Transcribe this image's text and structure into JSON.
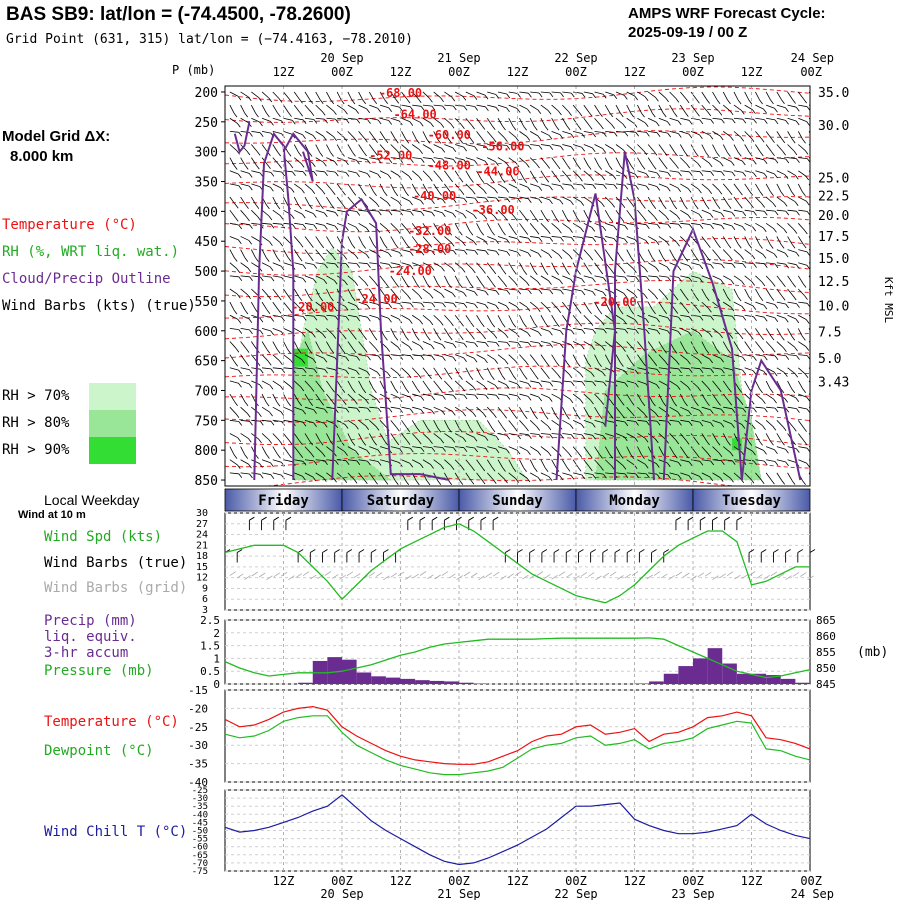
{
  "header": {
    "title": "BAS SB9:  lat/lon = (-74.4500, -78.2600)",
    "subtitle": "Grid Point (631, 315) lat/lon = (−74.4163, −78.2010)",
    "cycle_line1": "AMPS WRF Forecast Cycle:",
    "cycle_line2": "2025-09-19 / 00  Z"
  },
  "model_grid": {
    "label": "Model Grid ΔX:",
    "value": "8.000 km"
  },
  "legend": {
    "temperature": "Temperature (°C)",
    "rh": "RH (%, WRT liq. wat.)",
    "cloud": "Cloud/Precip Outline",
    "wind_barbs": "Wind Barbs (kts) (true)",
    "rh_classes": [
      {
        "label": "RH > 70%",
        "color": "#ccf5cc"
      },
      {
        "label": "RH > 80%",
        "color": "#99e699"
      },
      {
        "label": "RH > 90%",
        "color": "#33dd33"
      }
    ]
  },
  "colors": {
    "temperature": "#ee1111",
    "rh_line": "#22bb22",
    "cloud": "#6a2c91",
    "wind_chill": "#1c1ca0",
    "precip_bar": "#6a2c91",
    "dow_dark": "#4a5aa8",
    "grid_barb": "#aaaaaa"
  },
  "time_axis": {
    "hour_labels": [
      "12Z",
      "00Z",
      "12Z",
      "00Z",
      "12Z",
      "00Z",
      "12Z",
      "00Z",
      "12Z",
      "00Z"
    ],
    "hour_positions": [
      12,
      24,
      36,
      48,
      60,
      72,
      84,
      96,
      108,
      120
    ],
    "date_labels": [
      "20 Sep",
      "21 Sep",
      "22 Sep",
      "23 Sep",
      "24 Sep"
    ],
    "date_positions": [
      24,
      48,
      72,
      96,
      120
    ],
    "start_hour": 0,
    "end_hour": 120
  },
  "weekday": {
    "title": "Local Weekday",
    "days": [
      {
        "label": "Friday",
        "start": 0,
        "end": 24
      },
      {
        "label": "Saturday",
        "start": 24,
        "end": 48
      },
      {
        "label": "Sunday",
        "start": 48,
        "end": 72
      },
      {
        "label": "Monday",
        "start": 72,
        "end": 96
      },
      {
        "label": "Tuesday",
        "start": 96,
        "end": 120
      }
    ]
  },
  "chart_data": [
    {
      "type": "heatmap",
      "name": "time-height cross section",
      "y_axis_left": {
        "label": "P (mb)",
        "ticks": [
          200,
          250,
          300,
          350,
          400,
          450,
          500,
          550,
          600,
          650,
          700,
          750,
          800,
          850
        ]
      },
      "y_axis_right": {
        "label": "Kft MSL",
        "ticks": [
          {
            "label": "35.0",
            "p": 200
          },
          {
            "label": "30.0",
            "p": 255
          },
          {
            "label": "25.0",
            "p": 343
          },
          {
            "label": "22.5",
            "p": 373
          },
          {
            "label": "20.0",
            "p": 406
          },
          {
            "label": "17.5",
            "p": 441
          },
          {
            "label": "15.0",
            "p": 478
          },
          {
            "label": "12.5",
            "p": 517
          },
          {
            "label": "10.0",
            "p": 558
          },
          {
            "label": "7.5",
            "p": 601
          },
          {
            "label": "5.0",
            "p": 646
          },
          {
            "label": "3.43",
            "p": 685
          }
        ]
      },
      "temperature_labels": [
        {
          "text": "-68.00",
          "t": 36,
          "p": 202
        },
        {
          "text": "-64.00",
          "t": 39,
          "p": 238
        },
        {
          "text": "-60.00",
          "t": 46,
          "p": 272
        },
        {
          "text": "-56.00",
          "t": 57,
          "p": 291
        },
        {
          "text": "-52.00",
          "t": 34,
          "p": 306
        },
        {
          "text": "-48.00",
          "t": 46,
          "p": 323
        },
        {
          "text": "-44.00",
          "t": 56,
          "p": 333
        },
        {
          "text": "-40.00",
          "t": 43,
          "p": 374
        },
        {
          "text": "-36.00",
          "t": 55,
          "p": 398
        },
        {
          "text": "-32.00",
          "t": 42,
          "p": 433
        },
        {
          "text": "-28.00",
          "t": 42,
          "p": 463
        },
        {
          "text": "-24.00",
          "t": 38,
          "p": 500
        },
        {
          "text": "-24.00",
          "t": 31,
          "p": 547
        },
        {
          "text": "-20.00",
          "t": 18,
          "p": 560
        },
        {
          "text": "-20.00",
          "t": 80,
          "p": 552
        }
      ],
      "rh_regions": [
        {
          "level": 70,
          "poly": [
            [
              14,
              850
            ],
            [
              14,
              700
            ],
            [
              16,
              600
            ],
            [
              19,
              500
            ],
            [
              22,
              460
            ],
            [
              26,
              500
            ],
            [
              30,
              700
            ],
            [
              34,
              800
            ],
            [
              38,
              850
            ]
          ]
        },
        {
          "level": 80,
          "poly": [
            [
              14,
              850
            ],
            [
              14,
              650
            ],
            [
              17,
              600
            ],
            [
              20,
              700
            ],
            [
              26,
              800
            ],
            [
              34,
              850
            ]
          ]
        },
        {
          "level": 90,
          "poly": [
            [
              14,
              660
            ],
            [
              17,
              660
            ],
            [
              17,
              630
            ],
            [
              14,
              630
            ]
          ]
        },
        {
          "level": 70,
          "poly": [
            [
              30,
              850
            ],
            [
              31,
              800
            ],
            [
              40,
              750
            ],
            [
              52,
              750
            ],
            [
              58,
              800
            ],
            [
              62,
              850
            ]
          ]
        },
        {
          "level": 70,
          "poly": [
            [
              74,
              850
            ],
            [
              74,
              650
            ],
            [
              76,
              600
            ],
            [
              80,
              560
            ],
            [
              88,
              560
            ],
            [
              96,
              500
            ],
            [
              104,
              530
            ],
            [
              106,
              700
            ],
            [
              110,
              850
            ]
          ]
        },
        {
          "level": 80,
          "poly": [
            [
              76,
              850
            ],
            [
              78,
              700
            ],
            [
              86,
              640
            ],
            [
              96,
              600
            ],
            [
              104,
              650
            ],
            [
              108,
              750
            ],
            [
              110,
              850
            ]
          ]
        },
        {
          "level": 90,
          "poly": [
            [
              104,
              780
            ],
            [
              106,
              780
            ],
            [
              106,
              800
            ],
            [
              104,
              800
            ]
          ]
        }
      ],
      "cloud_outline": [
        [
          [
            2,
            270
          ],
          [
            3,
            300
          ],
          [
            4,
            290
          ],
          [
            5,
            250
          ]
        ],
        [
          [
            6,
            850
          ],
          [
            7,
            500
          ],
          [
            8,
            320
          ],
          [
            10,
            270
          ],
          [
            12,
            290
          ],
          [
            13,
            380
          ],
          [
            14,
            500
          ],
          [
            14,
            850
          ]
        ],
        [
          [
            12,
            300
          ],
          [
            14,
            270
          ],
          [
            17,
            300
          ],
          [
            18,
            350
          ],
          [
            16,
            300
          ]
        ],
        [
          [
            22,
            850
          ],
          [
            24,
            450
          ],
          [
            25,
            400
          ],
          [
            28,
            380
          ],
          [
            31,
            420
          ],
          [
            32,
            600
          ],
          [
            34,
            840
          ],
          [
            40,
            840
          ],
          [
            46,
            850
          ]
        ],
        [
          [
            68,
            850
          ],
          [
            70,
            600
          ],
          [
            72,
            500
          ],
          [
            76,
            370
          ],
          [
            80,
            600
          ],
          [
            78,
            760
          ]
        ],
        [
          [
            80,
            850
          ],
          [
            80,
            500
          ],
          [
            82,
            300
          ],
          [
            84,
            380
          ],
          [
            86,
            600
          ],
          [
            88,
            850
          ]
        ],
        [
          [
            90,
            850
          ],
          [
            92,
            500
          ],
          [
            96,
            430
          ],
          [
            100,
            520
          ],
          [
            104,
            630
          ],
          [
            106,
            850
          ]
        ],
        [
          [
            106,
            850
          ],
          [
            108,
            700
          ],
          [
            110,
            650
          ],
          [
            114,
            700
          ],
          [
            118,
            850
          ]
        ]
      ]
    },
    {
      "type": "line",
      "name": "surface wind",
      "title": "Wind at 10 m",
      "series_labels": {
        "speed": "Wind Spd (kts)",
        "barbs_true": "Wind Barbs (true)",
        "barbs_grid": "Wind Barbs (grid)"
      },
      "ylim": [
        3,
        30
      ],
      "yticks": [
        3,
        6,
        9,
        12,
        15,
        18,
        21,
        24,
        27,
        30
      ],
      "x": [
        0,
        3,
        6,
        9,
        12,
        15,
        18,
        21,
        24,
        27,
        30,
        33,
        36,
        39,
        42,
        45,
        48,
        51,
        54,
        57,
        60,
        63,
        66,
        69,
        72,
        75,
        78,
        81,
        84,
        87,
        90,
        93,
        96,
        99,
        102,
        105,
        108,
        111,
        114,
        117,
        120
      ],
      "speed": [
        19,
        20,
        21,
        21,
        21,
        19,
        15,
        11,
        6,
        10,
        14,
        17,
        20,
        22,
        24,
        26,
        27,
        25,
        22,
        19,
        16,
        13,
        11,
        9,
        7,
        6,
        5,
        7,
        10,
        14,
        18,
        21,
        23,
        25,
        25,
        22,
        10,
        11,
        13,
        15,
        15
      ]
    },
    {
      "type": "bar",
      "name": "precipitation and pressure",
      "series_labels": {
        "precip": "Precip (mm)",
        "precip2": "liq. equiv.",
        "precip3": "3-hr accum",
        "pressure": "Pressure (mb)"
      },
      "precip_ylim": [
        0,
        2.5
      ],
      "precip_yticks": [
        "0",
        "0.5",
        "1",
        "1.5",
        "2",
        "2.5"
      ],
      "pressure_ylim": [
        845,
        865
      ],
      "pressure_yticks": [
        845,
        850,
        855,
        860,
        865
      ],
      "pressure_unit": "(mb)",
      "bar_x": [
        0,
        3,
        6,
        9,
        12,
        15,
        18,
        21,
        24,
        27,
        30,
        33,
        36,
        39,
        42,
        45,
        48,
        51,
        54,
        57,
        60,
        63,
        66,
        69,
        72,
        75,
        78,
        81,
        84,
        87,
        90,
        93,
        96,
        99,
        102,
        105,
        108,
        111,
        114,
        117
      ],
      "precip": [
        0,
        0,
        0,
        0,
        0,
        0.05,
        0.9,
        1.05,
        0.95,
        0.45,
        0.3,
        0.25,
        0.2,
        0.15,
        0.12,
        0.1,
        0.05,
        0.02,
        0,
        0,
        0,
        0,
        0,
        0,
        0,
        0,
        0,
        0,
        0.02,
        0.1,
        0.4,
        0.7,
        1.0,
        1.4,
        0.8,
        0.4,
        0.4,
        0.35,
        0.2,
        0.05
      ],
      "pressure_x": [
        0,
        3,
        6,
        9,
        12,
        15,
        18,
        21,
        24,
        27,
        30,
        33,
        36,
        39,
        42,
        45,
        48,
        51,
        54,
        57,
        60,
        63,
        66,
        69,
        72,
        75,
        78,
        81,
        84,
        87,
        90,
        93,
        96,
        99,
        102,
        105,
        108,
        111,
        114,
        117,
        120
      ],
      "pressure": [
        852,
        850,
        848.5,
        847.5,
        848,
        848.5,
        848.5,
        848.5,
        849,
        850,
        851,
        852.5,
        854,
        855,
        856.5,
        857.5,
        858,
        858.5,
        859,
        859,
        859,
        859,
        859.2,
        859.3,
        859.3,
        859.3,
        859.3,
        859.3,
        859.3,
        859.4,
        859,
        857,
        855,
        853,
        851,
        849,
        848,
        847,
        847.5,
        848.5,
        849.5
      ]
    },
    {
      "type": "line",
      "name": "temperature and dewpoint",
      "series_labels": {
        "temperature": "Temperature (°C)",
        "dewpoint": "Dewpoint (°C)"
      },
      "ylim": [
        -40,
        -15
      ],
      "yticks": [
        -40,
        -35,
        -30,
        -25,
        -20,
        -15
      ],
      "x": [
        0,
        3,
        6,
        9,
        12,
        15,
        18,
        21,
        24,
        27,
        30,
        33,
        36,
        39,
        42,
        45,
        48,
        51,
        54,
        57,
        60,
        63,
        66,
        69,
        72,
        75,
        78,
        81,
        84,
        87,
        90,
        93,
        96,
        99,
        102,
        105,
        108,
        111,
        114,
        117,
        120
      ],
      "temperature": [
        -23,
        -25,
        -24.5,
        -23,
        -21,
        -20,
        -19.5,
        -20.5,
        -25,
        -27.5,
        -29.5,
        -31.5,
        -33,
        -34,
        -34.5,
        -35,
        -35.2,
        -35.2,
        -34.5,
        -33,
        -31.5,
        -29,
        -27.5,
        -27,
        -25,
        -24.5,
        -27,
        -26.5,
        -25.5,
        -29,
        -27,
        -26.5,
        -25,
        -22.5,
        -22,
        -21,
        -22,
        -28,
        -28.5,
        -29.5,
        -31
      ],
      "dewpoint": [
        -27,
        -28,
        -27.5,
        -26,
        -23.5,
        -22.5,
        -22,
        -22,
        -26.5,
        -30,
        -32,
        -34,
        -35.5,
        -36.5,
        -37.5,
        -38,
        -38,
        -37.5,
        -37,
        -36,
        -33.5,
        -31,
        -30,
        -29.5,
        -28,
        -27.5,
        -30,
        -29.5,
        -28.5,
        -31,
        -29.5,
        -29,
        -28,
        -25.5,
        -24.5,
        -23.5,
        -24,
        -31,
        -31.5,
        -33,
        -34
      ]
    },
    {
      "type": "line",
      "name": "wind chill",
      "series_labels": {
        "wind_chill": "Wind Chill T (°C)"
      },
      "ylim": [
        -75,
        -25
      ],
      "yticks": [
        -75,
        -70,
        -65,
        -60,
        -55,
        -50,
        -45,
        -40,
        -35,
        -30,
        -25
      ],
      "x": [
        0,
        3,
        6,
        9,
        12,
        15,
        18,
        21,
        24,
        27,
        30,
        33,
        36,
        39,
        42,
        45,
        48,
        51,
        54,
        57,
        60,
        63,
        66,
        69,
        72,
        75,
        78,
        81,
        84,
        87,
        90,
        93,
        96,
        99,
        102,
        105,
        108,
        111,
        114,
        117,
        120
      ],
      "wind_chill": [
        -48,
        -51,
        -50,
        -48,
        -45,
        -42,
        -38,
        -35,
        -28,
        -36,
        -44,
        -50,
        -55,
        -60,
        -65,
        -69,
        -71,
        -70,
        -67,
        -63,
        -59,
        -54,
        -49,
        -42,
        -35,
        -35,
        -34,
        -33,
        -43,
        -47,
        -50,
        -52,
        -52,
        -51,
        -49,
        -47,
        -40,
        -46,
        -50,
        -53,
        -55
      ]
    }
  ]
}
